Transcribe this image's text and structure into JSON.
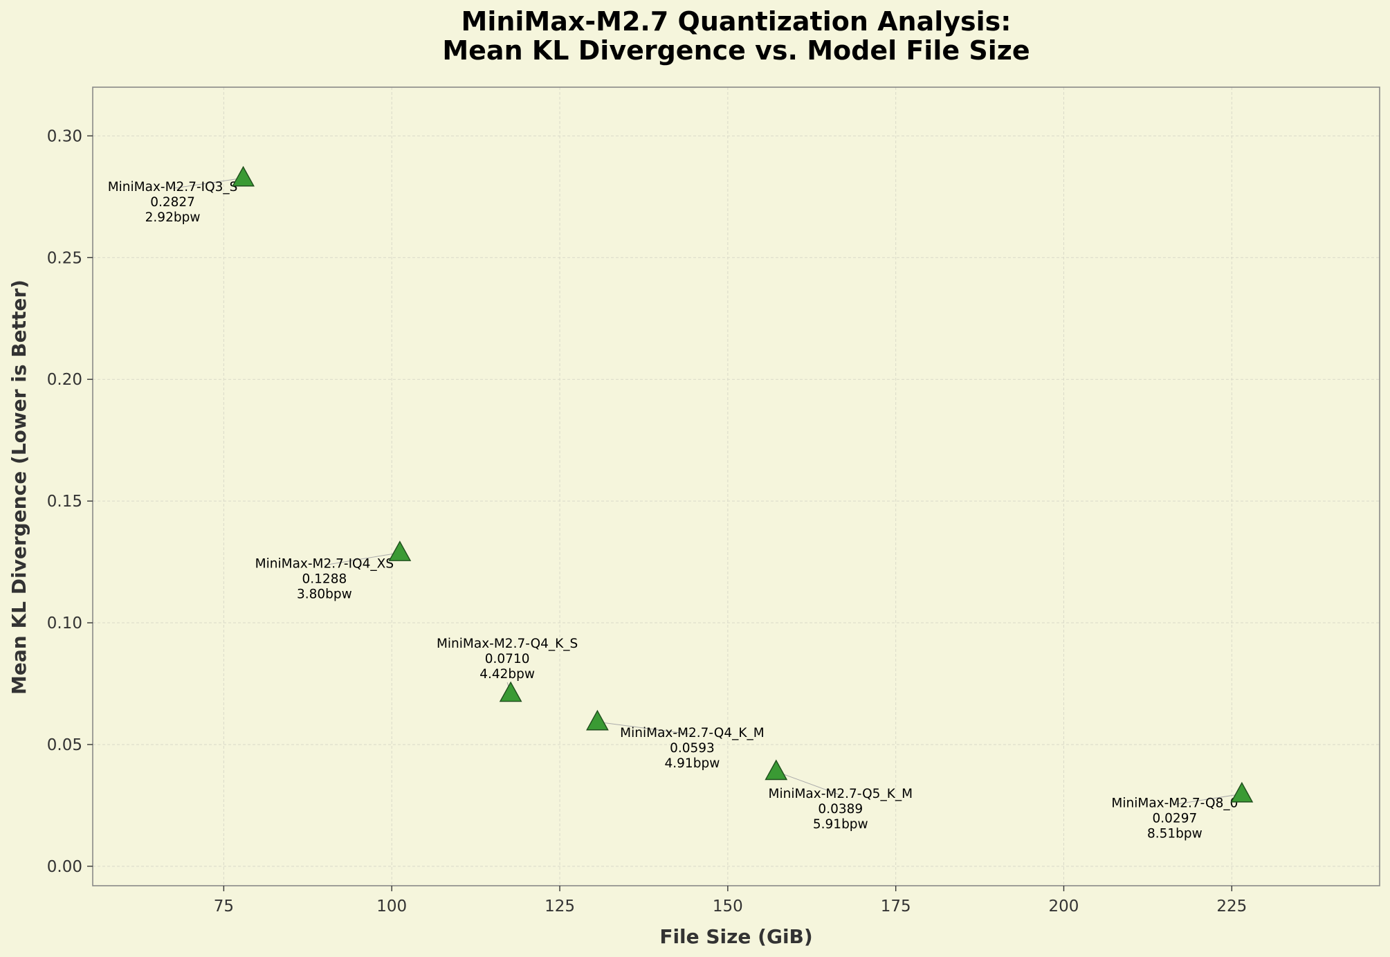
{
  "chart_data": {
    "type": "scatter",
    "title_line1": "MiniMax-M2.7 Quantization Analysis:",
    "title_line2": "Mean KL Divergence vs. Model File Size",
    "xlabel": "File Size (GiB)",
    "ylabel": "Mean KL Divergence (Lower is Better)",
    "xlim": [
      55.5,
      247
    ],
    "ylim": [
      -0.008,
      0.32
    ],
    "x_ticks": [
      75,
      100,
      125,
      150,
      175,
      200,
      225
    ],
    "x_tick_labels": [
      "75",
      "100",
      "125",
      "150",
      "175",
      "200",
      "225"
    ],
    "y_ticks": [
      0.0,
      0.05,
      0.1,
      0.15,
      0.2,
      0.25,
      0.3
    ],
    "y_tick_labels": [
      "0.00",
      "0.05",
      "0.10",
      "0.15",
      "0.20",
      "0.25",
      "0.30"
    ],
    "grid": true,
    "marker": "triangle",
    "colors": {
      "background": "#f5f5dc",
      "marker_fill": "#3a9a34",
      "marker_edge": "#1f4d1c",
      "grid": "#d9d9c8",
      "axes_edge": "#888888",
      "leader": "#aaaaaa"
    },
    "points": [
      {
        "name": "MiniMax-M2.7-IQ3_S",
        "x": 77.9,
        "y": 0.2827,
        "kl_label": "0.2827",
        "bpw_label": "2.92bpw"
      },
      {
        "name": "MiniMax-M2.7-IQ4_XS",
        "x": 101.2,
        "y": 0.1288,
        "kl_label": "0.1288",
        "bpw_label": "3.80bpw"
      },
      {
        "name": "MiniMax-M2.7-Q4_K_S",
        "x": 117.7,
        "y": 0.071,
        "kl_label": "0.0710",
        "bpw_label": "4.42bpw"
      },
      {
        "name": "MiniMax-M2.7-Q4_K_M",
        "x": 130.6,
        "y": 0.0593,
        "kl_label": "0.0593",
        "bpw_label": "4.91bpw"
      },
      {
        "name": "MiniMax-M2.7-Q5_K_M",
        "x": 157.2,
        "y": 0.0389,
        "kl_label": "0.0389",
        "bpw_label": "5.91bpw"
      },
      {
        "name": "MiniMax-M2.7-Q8_0",
        "x": 226.5,
        "y": 0.0297,
        "kl_label": "0.0297",
        "bpw_label": "8.51bpw"
      }
    ]
  }
}
